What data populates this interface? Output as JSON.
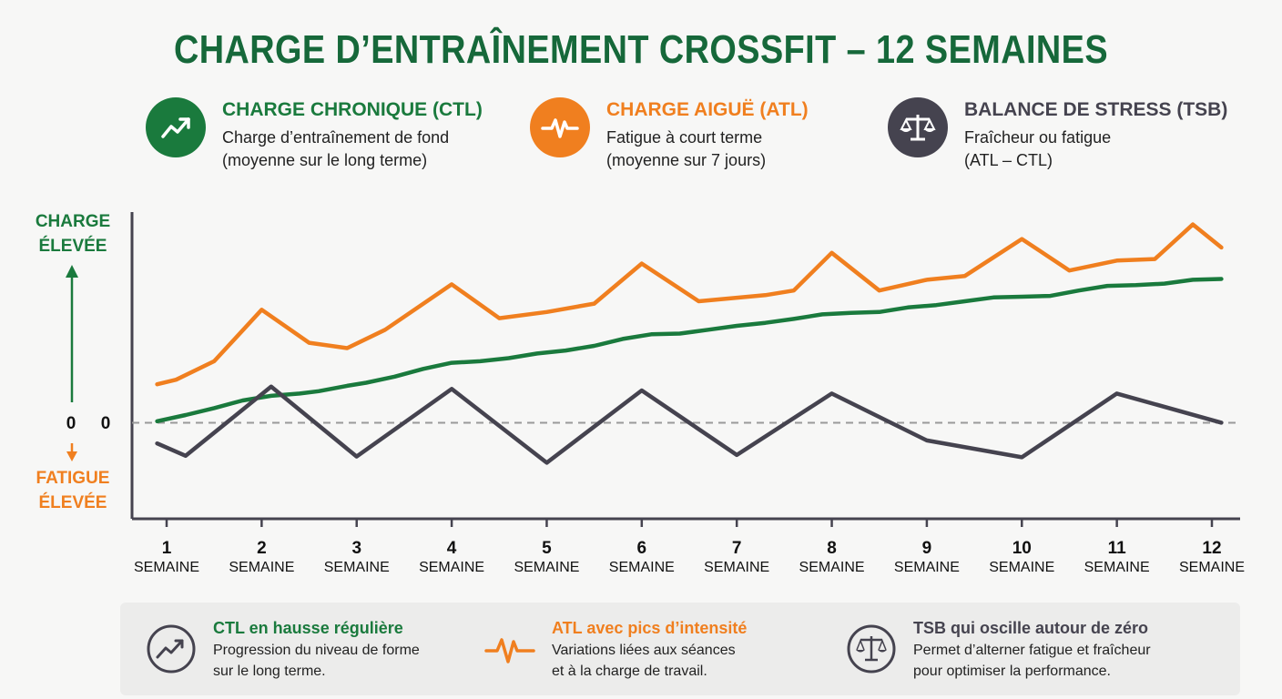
{
  "title": "CHARGE D’ENTRAÎNEMENT CROSSFIT – 12 SEMAINES",
  "colors": {
    "ctl": "#1a7a3d",
    "atl": "#f07f1f",
    "tsb": "#45434f",
    "title": "#16683a"
  },
  "legend": [
    {
      "title": "CHARGE CHRONIQUE (CTL)",
      "line1": "Charge d’entraînement de fond",
      "line2": "(moyenne sur le long terme)",
      "icon": "trend-up-icon"
    },
    {
      "title": "CHARGE AIGUË (ATL)",
      "line1": "Fatigue à court terme",
      "line2": "(moyenne sur 7 jours)",
      "icon": "heartbeat-icon"
    },
    {
      "title": "BALANCE DE STRESS (TSB)",
      "line1": "Fraîcheur ou fatigue",
      "line2": "(ATL – CTL)",
      "icon": "scale-icon"
    }
  ],
  "yaxis": {
    "top_label_1": "CHARGE",
    "top_label_2": "ÉLEVÉE",
    "zero_left": "0",
    "zero_right": "0",
    "bottom_label_1": "FATIGUE",
    "bottom_label_2": "ÉLEVÉE"
  },
  "chart_data": {
    "type": "line",
    "x_unit_label": "SEMAINE",
    "x": [
      1,
      2,
      3,
      4,
      5,
      6,
      7,
      8,
      9,
      10,
      11,
      12
    ],
    "xlim": [
      0.6,
      12.3
    ],
    "ylim": [
      -12.5,
      28
    ],
    "zero_line": 0,
    "series": [
      {
        "key": "ctl",
        "x": [
          0.9,
          1.2,
          1.5,
          1.8,
          2.1,
          2.4,
          2.6,
          2.9,
          3.1,
          3.4,
          3.7,
          4.0,
          4.3,
          4.6,
          4.9,
          5.2,
          5.5,
          5.8,
          6.1,
          6.4,
          6.7,
          7.0,
          7.3,
          7.6,
          7.9,
          8.2,
          8.5,
          8.8,
          9.1,
          9.4,
          9.7,
          10.0,
          10.3,
          10.6,
          10.9,
          11.2,
          11.5,
          11.8,
          12.1
        ],
        "y": [
          0.2,
          1.0,
          1.9,
          2.9,
          3.5,
          3.8,
          4.1,
          4.8,
          5.2,
          6.0,
          7.0,
          7.8,
          8.0,
          8.4,
          9.0,
          9.4,
          10.0,
          10.9,
          11.5,
          11.6,
          12.1,
          12.6,
          13.0,
          13.5,
          14.1,
          14.3,
          14.4,
          15.0,
          15.3,
          15.8,
          16.3,
          16.4,
          16.5,
          17.2,
          17.8,
          17.9,
          18.1,
          18.6,
          18.7
        ]
      },
      {
        "key": "atl",
        "x": [
          0.9,
          1.1,
          1.5,
          2.0,
          2.5,
          2.9,
          3.3,
          4.0,
          4.5,
          5.0,
          5.5,
          6.0,
          6.6,
          7.3,
          7.6,
          8.0,
          8.5,
          9.0,
          9.4,
          10.0,
          10.5,
          11.0,
          11.4,
          11.8,
          12.1
        ],
        "y": [
          5.0,
          5.6,
          8.0,
          14.7,
          10.4,
          9.7,
          12.1,
          18.0,
          13.6,
          14.4,
          15.5,
          20.7,
          15.8,
          16.6,
          17.2,
          22.1,
          17.2,
          18.6,
          19.1,
          23.9,
          19.8,
          21.1,
          21.3,
          25.8,
          22.8
        ]
      },
      {
        "key": "tsb",
        "x": [
          0.9,
          1.2,
          2.1,
          3.0,
          4.0,
          5.0,
          6.0,
          7.0,
          8.0,
          9.0,
          10.0,
          11.0,
          12.1
        ],
        "y": [
          -2.7,
          -4.3,
          4.7,
          -4.4,
          4.4,
          -5.2,
          4.2,
          -4.2,
          3.8,
          -2.3,
          -4.5,
          3.8,
          0.0
        ]
      }
    ]
  },
  "footer": [
    {
      "title": "CTL en hausse régulière",
      "line1": "Progression du niveau de forme",
      "line2": "sur le long terme.",
      "icon": "trend-up-icon"
    },
    {
      "title": "ATL avec pics d’intensité",
      "line1": "Variations liées aux séances",
      "line2": "et à la charge de travail.",
      "icon": "heartbeat-icon"
    },
    {
      "title": "TSB qui oscille autour de zéro",
      "line1": "Permet d’alterner fatigue et fraîcheur",
      "line2": "pour optimiser la performance.",
      "icon": "scale-icon"
    }
  ]
}
